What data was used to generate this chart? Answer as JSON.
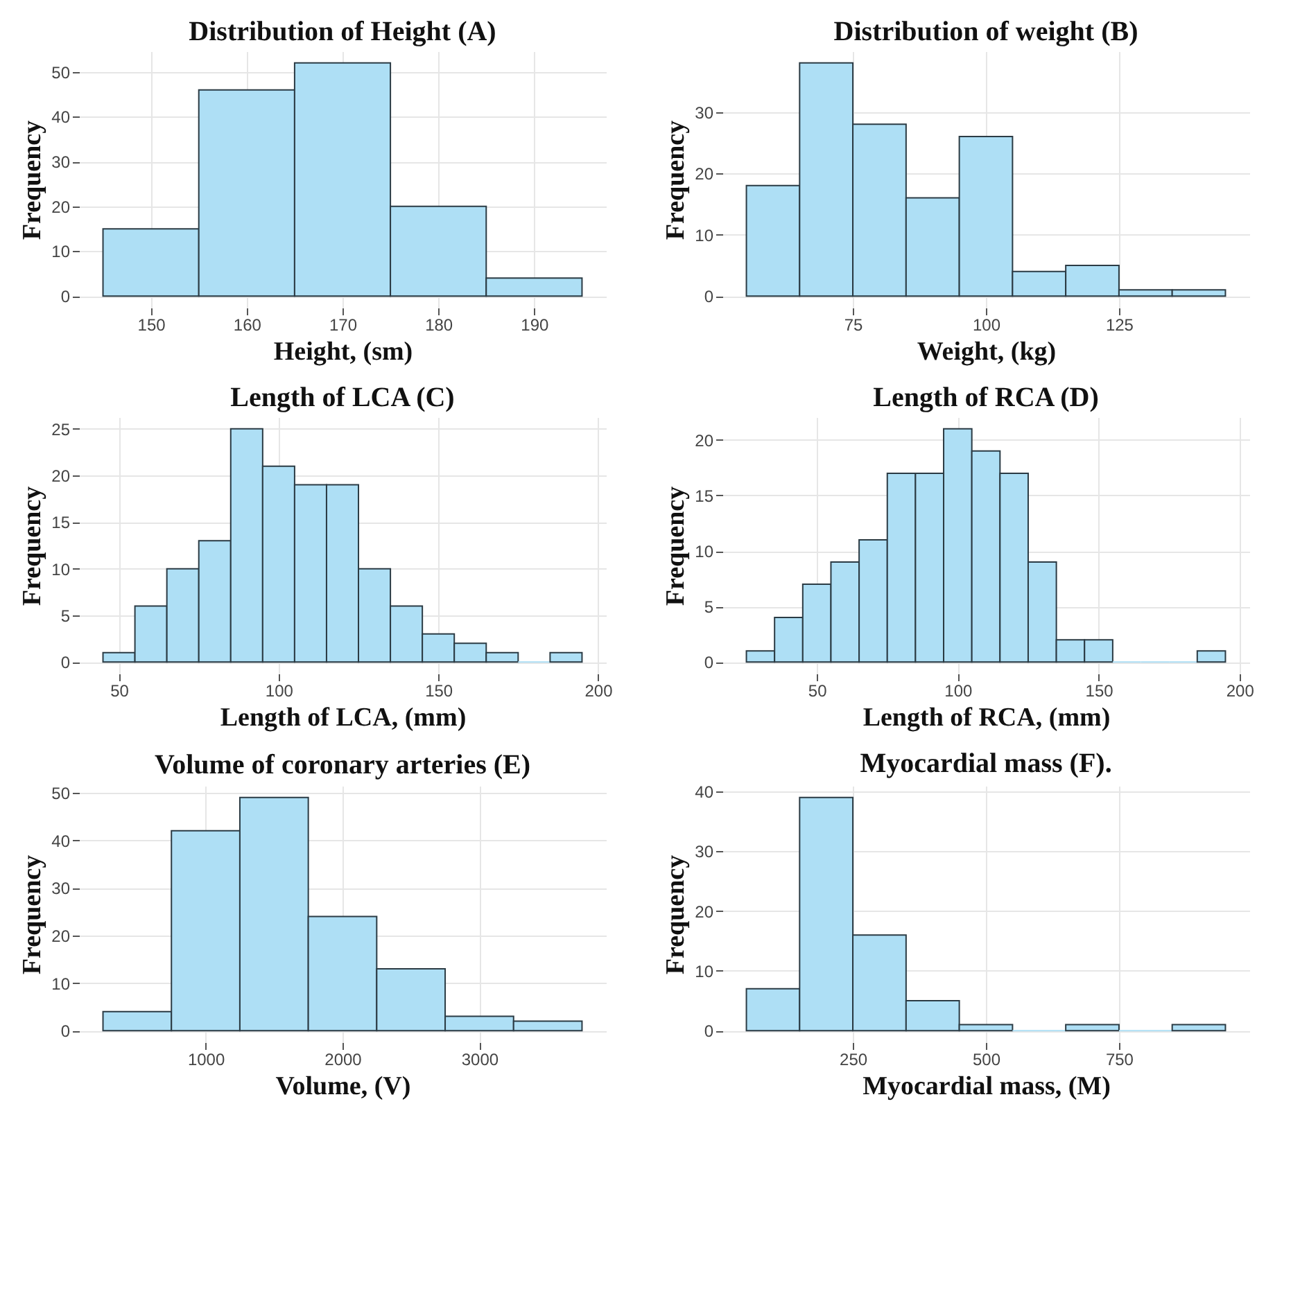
{
  "chart_data": [
    {
      "type": "histogram",
      "title": "Distribution of Height (A)",
      "xlabel": "Height, (sm)",
      "ylabel": "Frequency",
      "color": "#aedff5",
      "bins": [
        145,
        155,
        165,
        175,
        185,
        195
      ],
      "values": [
        15,
        46,
        52,
        20,
        4
      ],
      "xlim": [
        142.5,
        197.5
      ],
      "xticks": [
        150,
        160,
        170,
        180,
        190
      ],
      "ylim": [
        -2.6,
        54.6
      ],
      "yticks": [
        0,
        10,
        20,
        30,
        40,
        50
      ],
      "grid": true
    },
    {
      "type": "histogram",
      "title": "Distribution of weight (B)",
      "xlabel": "Weight, (kg)",
      "ylabel": "Frequency",
      "color": "#aedff5",
      "bins": [
        55,
        65,
        75,
        85,
        95,
        105,
        115,
        125,
        135,
        145
      ],
      "values": [
        18,
        38,
        28,
        16,
        26,
        4,
        5,
        1,
        1
      ],
      "xlim": [
        50.5,
        149.5
      ],
      "xticks": [
        75,
        100,
        125
      ],
      "ylim": [
        -1.9,
        39.9
      ],
      "yticks": [
        0,
        10,
        20,
        30
      ],
      "grid": true
    },
    {
      "type": "histogram",
      "title": "Length of LCA (C)",
      "xlabel": "Length of LCA, (mm)",
      "ylabel": "Frequency",
      "color": "#aedff5",
      "bins": [
        45,
        55,
        65,
        75,
        85,
        95,
        105,
        115,
        125,
        135,
        145,
        155,
        165,
        175,
        185,
        195
      ],
      "values": [
        1,
        6,
        10,
        13,
        25,
        21,
        19,
        19,
        10,
        6,
        3,
        2,
        1,
        0,
        1
      ],
      "xlim": [
        37.5,
        202.5
      ],
      "xticks": [
        50,
        100,
        150,
        200
      ],
      "ylim": [
        -1.25,
        26.25
      ],
      "yticks": [
        0,
        5,
        10,
        15,
        20,
        25
      ],
      "grid": true
    },
    {
      "type": "histogram",
      "title": "Length of RCA (D)",
      "xlabel": "Length of RCA, (mm)",
      "ylabel": "Frequency",
      "color": "#aedff5",
      "bins": [
        25,
        35,
        45,
        55,
        65,
        75,
        85,
        95,
        105,
        115,
        125,
        135,
        145,
        155,
        165,
        175,
        185,
        195
      ],
      "values": [
        1,
        4,
        7,
        9,
        11,
        17,
        17,
        21,
        19,
        17,
        9,
        2,
        2,
        0,
        0,
        0,
        1
      ],
      "xlim": [
        16.5,
        203.5
      ],
      "xticks": [
        50,
        100,
        150,
        200
      ],
      "ylim": [
        -1.05,
        22.05
      ],
      "yticks": [
        0,
        5,
        10,
        15,
        20
      ],
      "grid": true
    },
    {
      "type": "histogram",
      "title": "Volume of coronary arteries (E)",
      "xlabel": "Volume, (V)",
      "ylabel": "Frequency",
      "color": "#aedff5",
      "bins": [
        250,
        750,
        1250,
        1750,
        2250,
        2750,
        3250,
        3750
      ],
      "values": [
        4,
        42,
        49,
        24,
        13,
        3,
        2
      ],
      "xlim": [
        75,
        3925
      ],
      "xticks": [
        1000,
        2000,
        3000
      ],
      "ylim": [
        -2.45,
        51.45
      ],
      "yticks": [
        0,
        10,
        20,
        30,
        40,
        50
      ],
      "grid": true
    },
    {
      "type": "histogram",
      "title": "Myocardial mass (F).",
      "xlabel": "Myocardial mass, (M)",
      "ylabel": "Frequency",
      "color": "#aedff5",
      "bins": [
        50,
        150,
        250,
        350,
        450,
        550,
        650,
        750,
        850,
        950
      ],
      "values": [
        7,
        39,
        16,
        5,
        1,
        0,
        1,
        0,
        1
      ],
      "xlim": [
        5,
        995
      ],
      "xticks": [
        250,
        500,
        750
      ],
      "ylim": [
        -1.95,
        40.95
      ],
      "yticks": [
        0,
        10,
        20,
        30,
        40
      ],
      "grid": true
    }
  ]
}
